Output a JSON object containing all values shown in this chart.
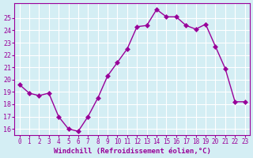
{
  "x": [
    0,
    1,
    2,
    3,
    4,
    5,
    6,
    7,
    8,
    9,
    10,
    11,
    12,
    13,
    14,
    15,
    16,
    17,
    18,
    19,
    20,
    21,
    22,
    23
  ],
  "y": [
    19.6,
    18.9,
    18.7,
    18.9,
    17.0,
    16.0,
    15.8,
    17.0,
    18.5,
    20.3,
    21.4,
    22.5,
    24.3,
    24.4,
    25.7,
    25.1,
    25.1,
    24.4,
    24.1,
    24.5,
    22.7,
    20.9,
    18.2,
    18.2
  ],
  "line_color": "#990099",
  "marker": "D",
  "marker_size": 3,
  "bg_color": "#d4eef4",
  "grid_color": "#ffffff",
  "xlabel": "Windchill (Refroidissement éolien,°C)",
  "xlabel_color": "#990099",
  "tick_color": "#990099",
  "ylim": [
    15.5,
    26.2
  ],
  "xlim": [
    -0.5,
    23.5
  ],
  "yticks": [
    16,
    17,
    18,
    19,
    20,
    21,
    22,
    23,
    24,
    25
  ],
  "xticks": [
    0,
    1,
    2,
    3,
    4,
    5,
    6,
    7,
    8,
    9,
    10,
    11,
    12,
    13,
    14,
    15,
    16,
    17,
    18,
    19,
    20,
    21,
    22,
    23
  ],
  "font_family": "monospace"
}
